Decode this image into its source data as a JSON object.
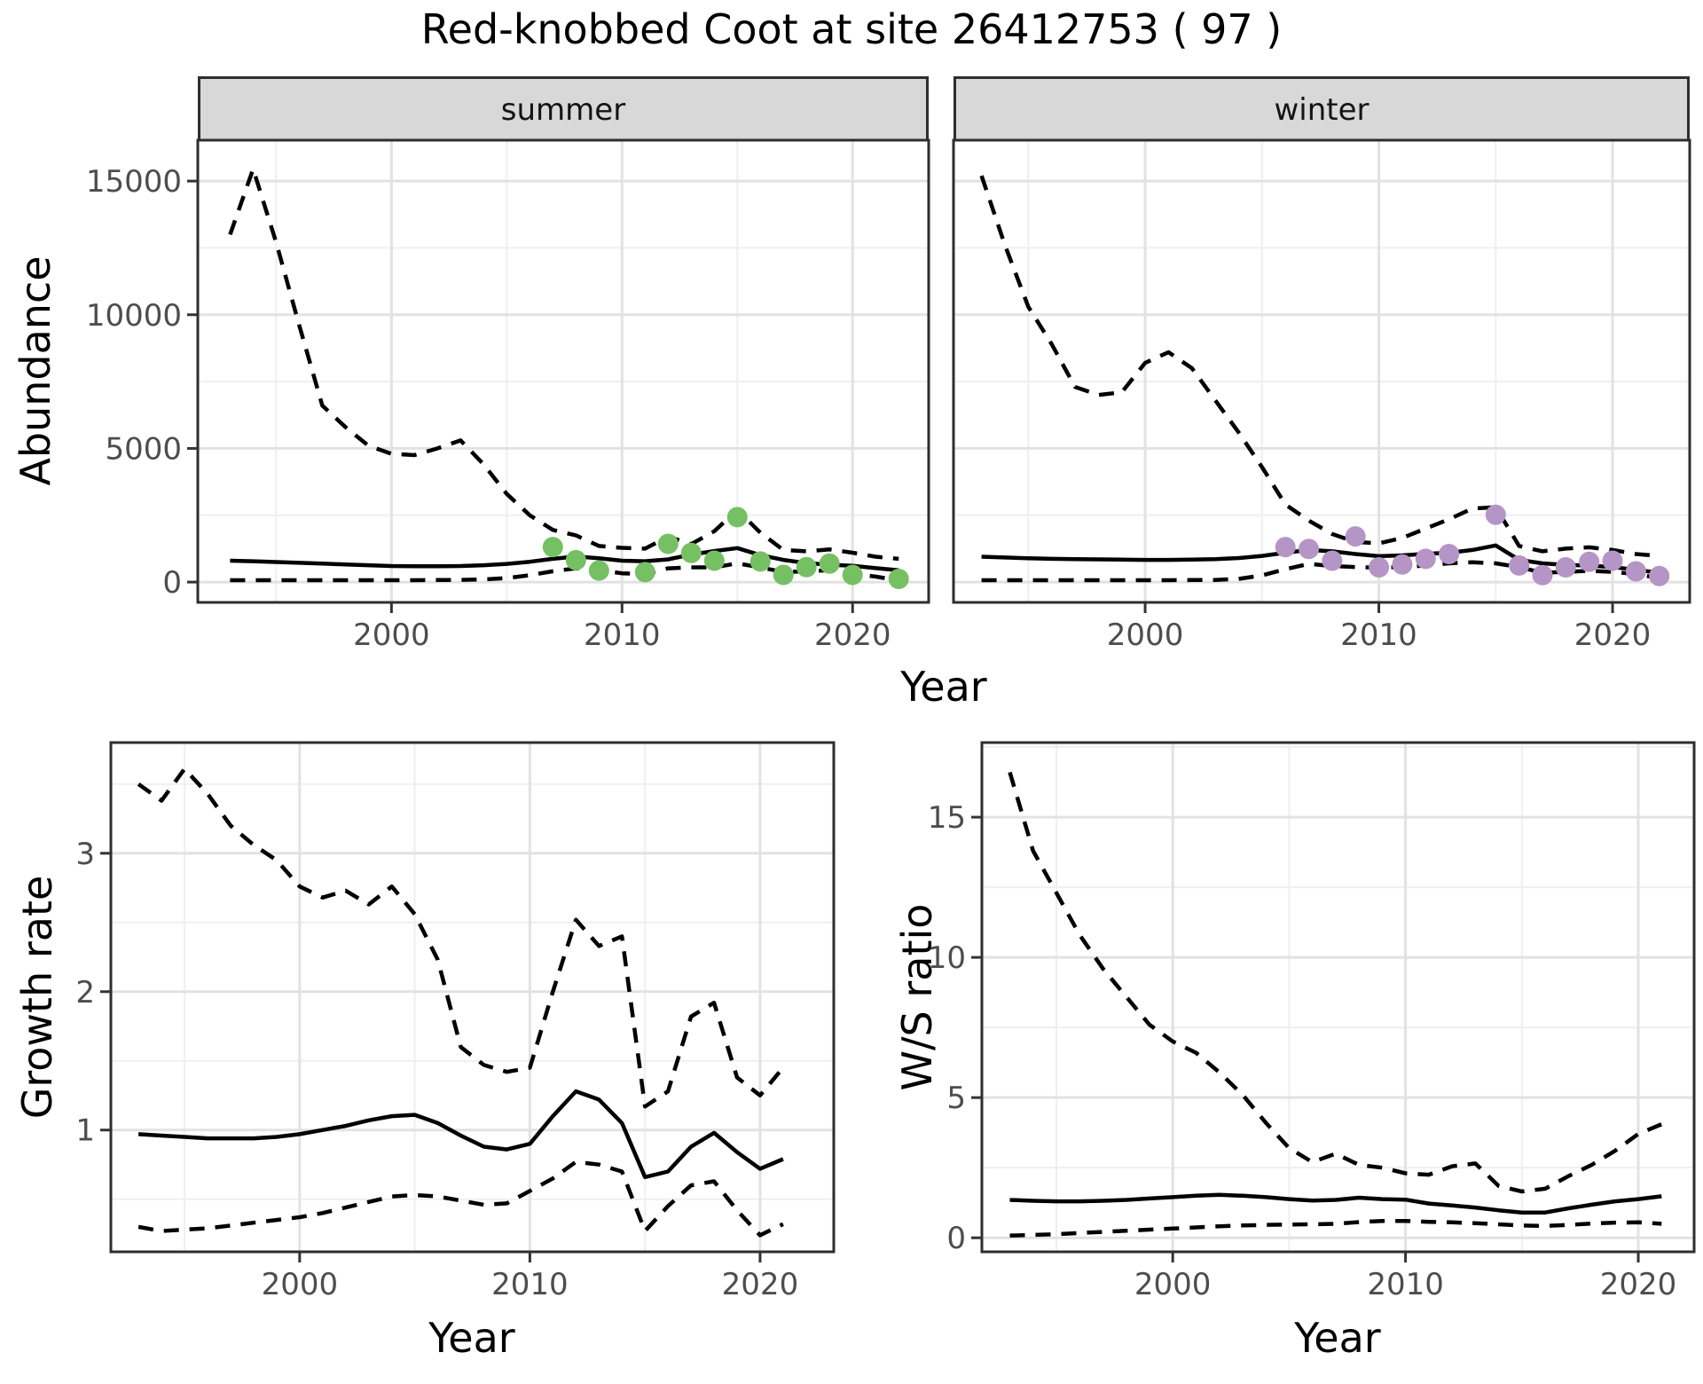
{
  "title": "Red-knobbed Coot at site 26412753 ( 97 )",
  "facets": {
    "summer": "summer",
    "winter": "winter"
  },
  "axis_titles": {
    "abundance": "Abundance",
    "year_top": "Year",
    "growth": "Growth rate",
    "ws": "W/S ratio",
    "year_growth": "Year",
    "year_ws": "Year"
  },
  "colors": {
    "summer_point": "#76c064",
    "winter_point": "#b594c6",
    "line": "#000000",
    "grid_major": "#e2e2e2",
    "grid_minor": "#efefef",
    "panel_border": "#2e2e2e",
    "strip_bg": "#d8d8d8",
    "tick_mark": "#333333",
    "tick_label": "#4d4d4d",
    "background": "#ffffff"
  },
  "chart_data": [
    {
      "id": "abundance-summer",
      "type": "line",
      "facet_label": "summer",
      "title": "Abundance - summer facet",
      "xlabel": "Year",
      "ylabel": "Abundance",
      "xlim": [
        1991.6,
        2023.3
      ],
      "ylim": [
        -760,
        16530
      ],
      "x_major_ticks": [
        2000,
        2010,
        2020
      ],
      "x_minor_ticks": [
        1995,
        2005,
        2015
      ],
      "y_major_ticks": [
        0,
        5000,
        10000,
        15000
      ],
      "y_minor_ticks": [
        2500,
        7500,
        12500
      ],
      "show_y_labels": true,
      "grid": true,
      "legend": "none",
      "years": [
        1993,
        1994,
        1995,
        1996,
        1997,
        1998,
        1999,
        2000,
        2001,
        2002,
        2003,
        2004,
        2005,
        2006,
        2007,
        2008,
        2009,
        2010,
        2011,
        2012,
        2013,
        2014,
        2015,
        2016,
        2017,
        2018,
        2019,
        2020,
        2021,
        2022
      ],
      "series": [
        {
          "name": "upper-ci",
          "style": "dashed",
          "values": [
            13000,
            15450,
            12700,
            9600,
            6600,
            5800,
            5100,
            4800,
            4750,
            5000,
            5300,
            4400,
            3300,
            2500,
            1950,
            1750,
            1350,
            1280,
            1250,
            1700,
            1420,
            1900,
            2700,
            1850,
            1200,
            1150,
            1220,
            1100,
            950,
            870
          ]
        },
        {
          "name": "model-fit",
          "style": "solid",
          "values": [
            800,
            780,
            750,
            720,
            690,
            660,
            630,
            600,
            590,
            590,
            600,
            630,
            680,
            760,
            870,
            960,
            890,
            800,
            780,
            850,
            1030,
            1160,
            1270,
            1010,
            830,
            710,
            650,
            610,
            520,
            440
          ]
        },
        {
          "name": "lower-ci",
          "style": "dashed",
          "values": [
            70,
            70,
            70,
            70,
            70,
            70,
            70,
            70,
            70,
            75,
            80,
            100,
            150,
            255,
            405,
            515,
            440,
            330,
            305,
            515,
            550,
            550,
            700,
            550,
            370,
            405,
            440,
            305,
            205,
            60
          ]
        }
      ],
      "points": {
        "name": "summer-observations",
        "color": "#76c064",
        "data": [
          [
            2007,
            1310
          ],
          [
            2008,
            820
          ],
          [
            2009,
            430
          ],
          [
            2011,
            370
          ],
          [
            2012,
            1430
          ],
          [
            2013,
            1090
          ],
          [
            2014,
            800
          ],
          [
            2015,
            2430
          ],
          [
            2016,
            770
          ],
          [
            2017,
            270
          ],
          [
            2018,
            560
          ],
          [
            2019,
            690
          ],
          [
            2020,
            270
          ],
          [
            2022,
            120
          ]
        ]
      }
    },
    {
      "id": "abundance-winter",
      "type": "line",
      "facet_label": "winter",
      "title": "Abundance - winter facet",
      "xlabel": "Year",
      "ylabel": "Abundance",
      "xlim": [
        1991.8,
        2023.3
      ],
      "ylim": [
        -760,
        16530
      ],
      "x_major_ticks": [
        2000,
        2010,
        2020
      ],
      "x_minor_ticks": [
        1995,
        2005,
        2015
      ],
      "y_major_ticks": [
        0,
        5000,
        10000,
        15000
      ],
      "y_minor_ticks": [
        2500,
        7500,
        12500
      ],
      "show_y_labels": false,
      "grid": true,
      "legend": "none",
      "years": [
        1993,
        1994,
        1995,
        1996,
        1997,
        1998,
        1999,
        2000,
        2001,
        2002,
        2003,
        2004,
        2005,
        2006,
        2007,
        2008,
        2009,
        2010,
        2011,
        2012,
        2013,
        2014,
        2015,
        2016,
        2017,
        2018,
        2019,
        2020,
        2021,
        2022
      ],
      "series": [
        {
          "name": "upper-ci",
          "style": "dashed",
          "values": [
            15200,
            12600,
            10300,
            8900,
            7300,
            7000,
            7100,
            8200,
            8600,
            8000,
            6800,
            5600,
            4300,
            2900,
            2300,
            1800,
            1500,
            1450,
            1650,
            2000,
            2350,
            2750,
            2800,
            1350,
            1150,
            1250,
            1300,
            1200,
            1050,
            980
          ]
        },
        {
          "name": "model-fit",
          "style": "solid",
          "values": [
            950,
            920,
            890,
            870,
            860,
            850,
            840,
            830,
            830,
            840,
            860,
            900,
            980,
            1100,
            1200,
            1150,
            1050,
            970,
            1000,
            1060,
            1100,
            1200,
            1370,
            830,
            700,
            640,
            620,
            560,
            460,
            350
          ]
        },
        {
          "name": "lower-ci",
          "style": "dashed",
          "values": [
            70,
            70,
            70,
            70,
            70,
            70,
            70,
            70,
            70,
            75,
            80,
            120,
            250,
            480,
            680,
            600,
            560,
            540,
            560,
            620,
            700,
            740,
            700,
            560,
            350,
            380,
            420,
            380,
            300,
            150
          ]
        }
      ],
      "points": {
        "name": "winter-observations",
        "color": "#b594c6",
        "data": [
          [
            2006,
            1310
          ],
          [
            2007,
            1240
          ],
          [
            2008,
            800
          ],
          [
            2009,
            1710
          ],
          [
            2010,
            550
          ],
          [
            2011,
            660
          ],
          [
            2012,
            870
          ],
          [
            2013,
            1050
          ],
          [
            2015,
            2520
          ],
          [
            2016,
            620
          ],
          [
            2017,
            260
          ],
          [
            2018,
            550
          ],
          [
            2019,
            760
          ],
          [
            2020,
            800
          ],
          [
            2021,
            400
          ],
          [
            2022,
            230
          ]
        ]
      }
    },
    {
      "id": "growth-rate",
      "type": "line",
      "title": "Growth rate",
      "xlabel": "Year",
      "ylabel": "Growth rate",
      "xlim": [
        1991.8,
        2023.2
      ],
      "ylim": [
        0.12,
        3.8
      ],
      "x_major_ticks": [
        2000,
        2010,
        2020
      ],
      "x_minor_ticks": [
        1995,
        2005,
        2015
      ],
      "y_major_ticks": [
        1,
        2,
        3
      ],
      "y_minor_ticks": [
        0.5,
        1.5,
        2.5,
        3.5
      ],
      "show_y_labels": true,
      "grid": true,
      "legend": "none",
      "years": [
        1993,
        1994,
        1995,
        1996,
        1997,
        1998,
        1999,
        2000,
        2001,
        2002,
        2003,
        2004,
        2005,
        2006,
        2007,
        2008,
        2009,
        2010,
        2011,
        2012,
        2013,
        2014,
        2015,
        2016,
        2017,
        2018,
        2019,
        2020,
        2021
      ],
      "series": [
        {
          "name": "upper-ci",
          "style": "dashed",
          "values": [
            3.5,
            3.38,
            3.61,
            3.43,
            3.2,
            3.06,
            2.95,
            2.76,
            2.68,
            2.73,
            2.63,
            2.76,
            2.56,
            2.23,
            1.6,
            1.47,
            1.42,
            1.45,
            2.0,
            2.52,
            2.33,
            2.4,
            1.17,
            1.28,
            1.82,
            1.92,
            1.38,
            1.25,
            1.45
          ]
        },
        {
          "name": "model-fit",
          "style": "solid",
          "values": [
            0.97,
            0.96,
            0.95,
            0.94,
            0.94,
            0.94,
            0.95,
            0.97,
            1.0,
            1.03,
            1.07,
            1.1,
            1.11,
            1.05,
            0.96,
            0.88,
            0.86,
            0.9,
            1.1,
            1.28,
            1.22,
            1.05,
            0.66,
            0.7,
            0.88,
            0.98,
            0.84,
            0.72,
            0.79
          ]
        },
        {
          "name": "lower-ci",
          "style": "dashed",
          "values": [
            0.3,
            0.27,
            0.28,
            0.29,
            0.31,
            0.33,
            0.35,
            0.37,
            0.4,
            0.44,
            0.48,
            0.52,
            0.53,
            0.52,
            0.49,
            0.46,
            0.47,
            0.56,
            0.65,
            0.77,
            0.75,
            0.7,
            0.27,
            0.45,
            0.6,
            0.63,
            0.42,
            0.24,
            0.32
          ]
        }
      ],
      "points": null
    },
    {
      "id": "ws-ratio",
      "type": "line",
      "title": "W/S ratio",
      "xlabel": "Year",
      "ylabel": "W/S ratio",
      "xlim": [
        1991.8,
        2022.4
      ],
      "ylim": [
        -0.5,
        17.66
      ],
      "x_major_ticks": [
        2000,
        2010,
        2020
      ],
      "x_minor_ticks": [
        1995,
        2005,
        2015
      ],
      "y_major_ticks": [
        0,
        5,
        10,
        15
      ],
      "y_minor_ticks": [
        2.5,
        7.5,
        12.5,
        17.5
      ],
      "show_y_labels": true,
      "grid": true,
      "legend": "none",
      "years": [
        1993,
        1994,
        1995,
        1996,
        1997,
        1998,
        1999,
        2000,
        2001,
        2002,
        2003,
        2004,
        2005,
        2006,
        2007,
        2008,
        2009,
        2010,
        2011,
        2012,
        2013,
        2014,
        2015,
        2016,
        2017,
        2018,
        2019,
        2020,
        2021
      ],
      "series": [
        {
          "name": "upper-ci",
          "style": "dashed",
          "values": [
            16.6,
            13.8,
            12.3,
            10.8,
            9.6,
            8.6,
            7.6,
            7.0,
            6.6,
            5.9,
            5.1,
            4.1,
            3.2,
            2.7,
            3.0,
            2.6,
            2.5,
            2.3,
            2.25,
            2.55,
            2.65,
            1.85,
            1.65,
            1.75,
            2.2,
            2.6,
            3.1,
            3.7,
            4.05
          ]
        },
        {
          "name": "model-fit",
          "style": "solid",
          "values": [
            1.35,
            1.32,
            1.3,
            1.3,
            1.32,
            1.35,
            1.4,
            1.45,
            1.5,
            1.53,
            1.5,
            1.45,
            1.38,
            1.33,
            1.35,
            1.43,
            1.38,
            1.36,
            1.22,
            1.15,
            1.08,
            0.98,
            0.9,
            0.9,
            1.05,
            1.18,
            1.3,
            1.38,
            1.48
          ]
        },
        {
          "name": "lower-ci",
          "style": "dashed",
          "values": [
            0.08,
            0.1,
            0.13,
            0.17,
            0.21,
            0.25,
            0.29,
            0.33,
            0.37,
            0.41,
            0.44,
            0.46,
            0.47,
            0.48,
            0.5,
            0.56,
            0.6,
            0.6,
            0.57,
            0.55,
            0.52,
            0.48,
            0.44,
            0.42,
            0.46,
            0.51,
            0.54,
            0.55,
            0.5
          ]
        }
      ],
      "points": null
    }
  ]
}
